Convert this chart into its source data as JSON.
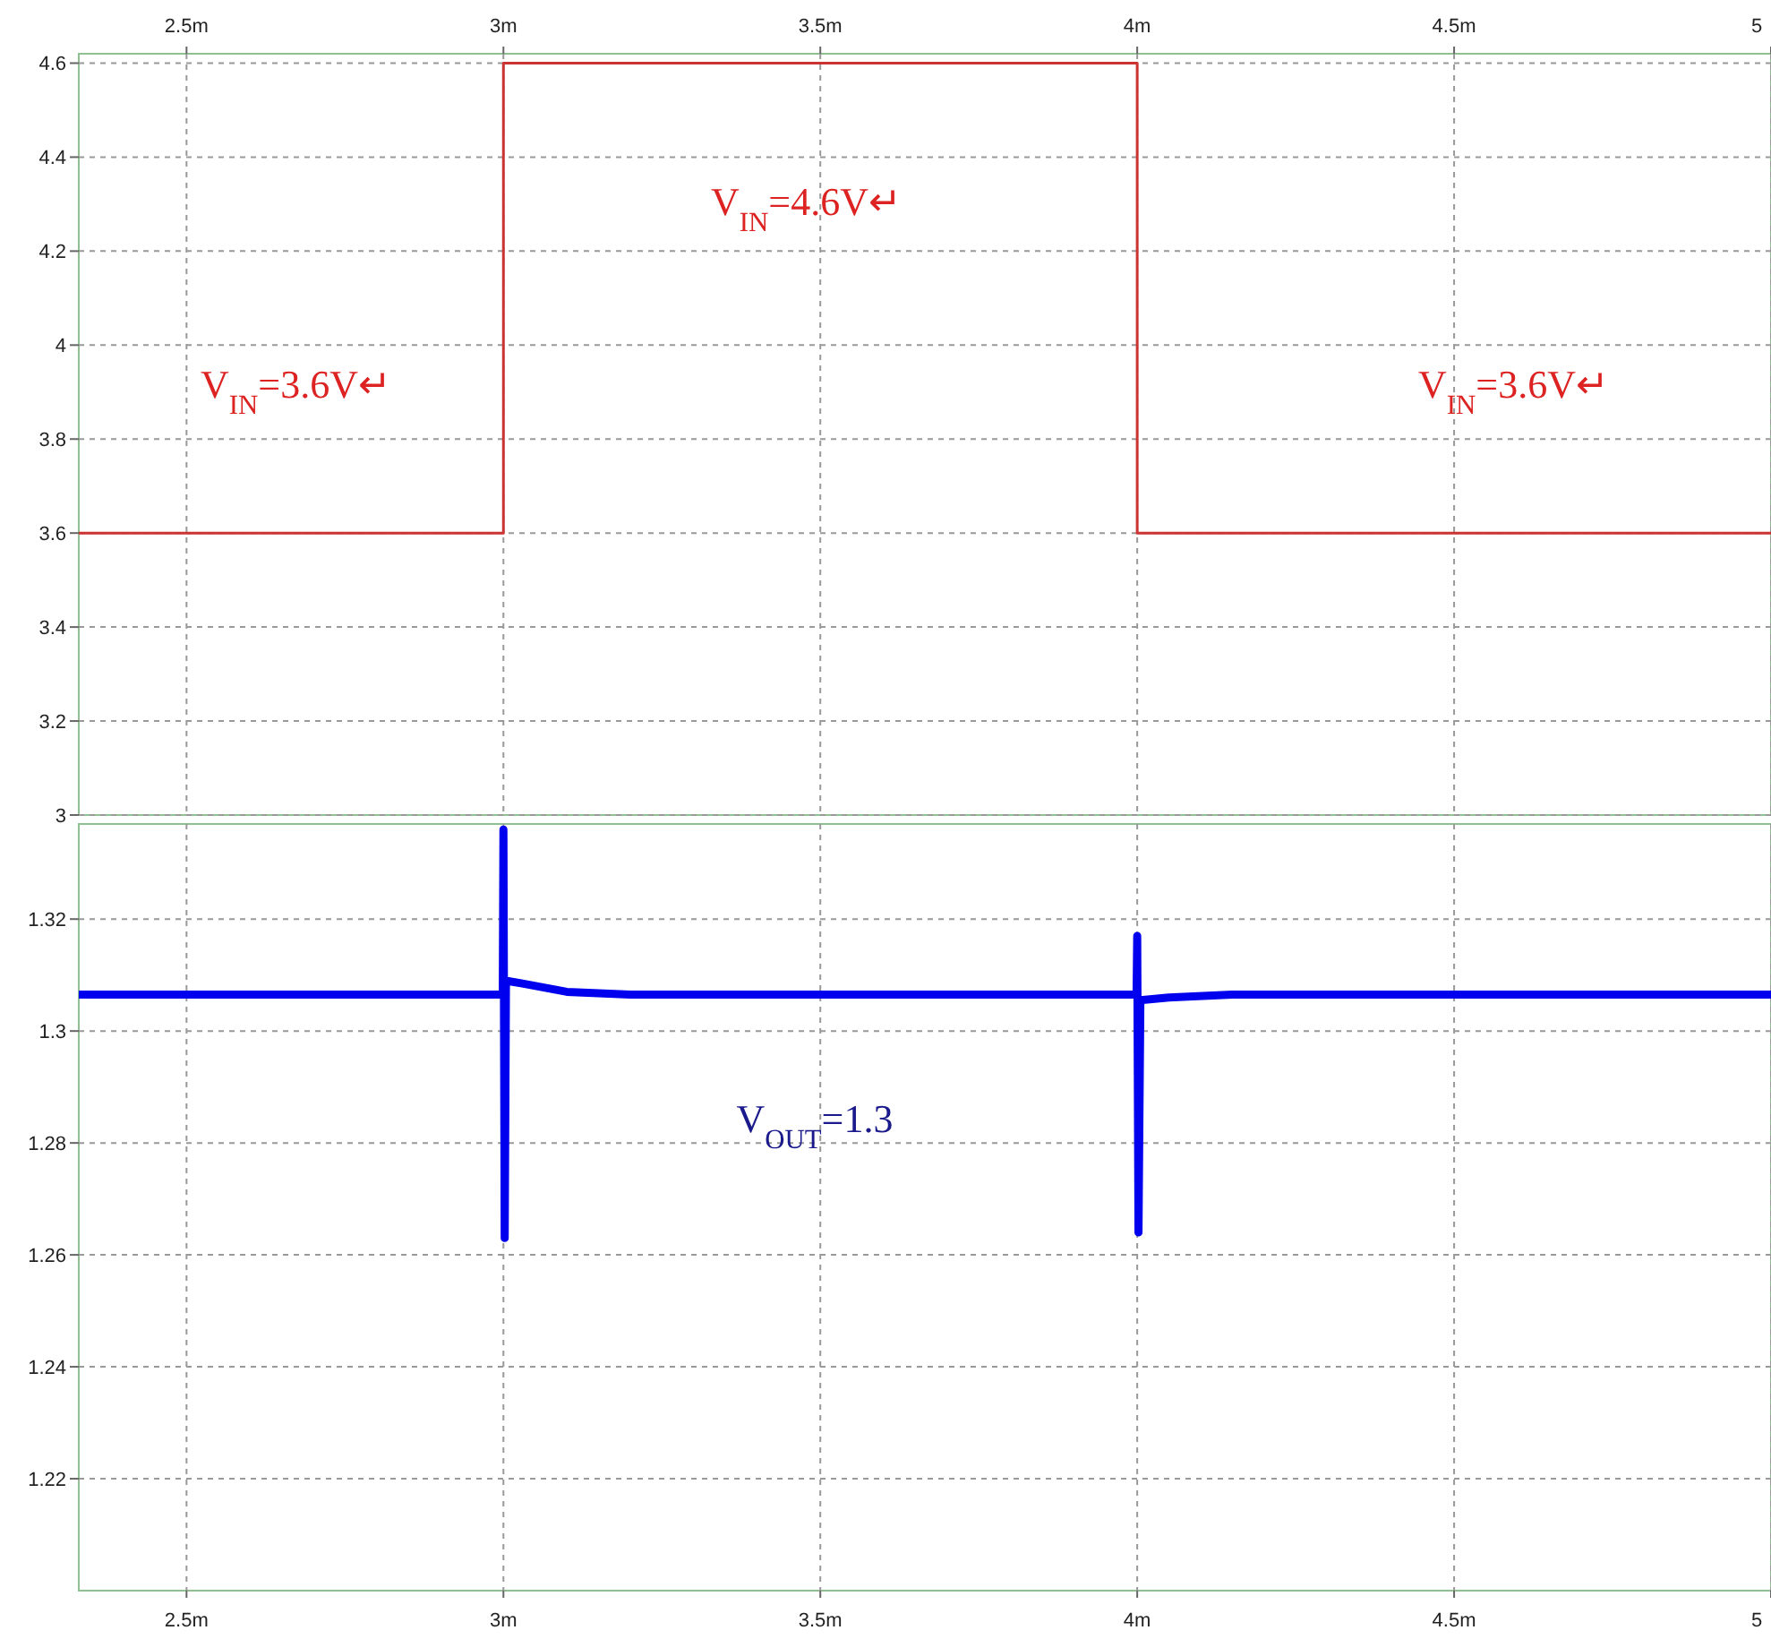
{
  "chart_data": [
    {
      "type": "line",
      "xlim": [
        2.33,
        5
      ],
      "xticks": [
        {
          "value": 2.5,
          "label": "2.5m"
        },
        {
          "value": 3,
          "label": "3m"
        },
        {
          "value": 3.5,
          "label": "3.5m"
        },
        {
          "value": 4,
          "label": "4m"
        },
        {
          "value": 4.5,
          "label": "4.5m"
        },
        {
          "value": 5,
          "label": "5"
        }
      ],
      "ylim": [
        3,
        4.62
      ],
      "yticks": [
        3,
        3.2,
        3.4,
        3.6,
        3.8,
        4,
        4.2,
        4.4,
        4.6
      ],
      "grid": true,
      "series": [
        {
          "color": "#cc3333",
          "x": [
            2.33,
            3,
            3,
            4,
            4,
            5
          ],
          "values": [
            3.6,
            3.6,
            4.6,
            4.6,
            3.6,
            3.6
          ]
        }
      ],
      "annotations": [
        "V$_{IN}$=3.6V↵",
        "V$_{IN}$=4.6V↵",
        "V$_{IN}$=3.6V↵"
      ]
    },
    {
      "type": "line",
      "xlim": [
        2.33,
        5
      ],
      "xticks": [
        {
          "value": 2.5,
          "label": "2.5m"
        },
        {
          "value": 3,
          "label": "3m"
        },
        {
          "value": 3.5,
          "label": "3.5m"
        },
        {
          "value": 4,
          "label": "4m"
        },
        {
          "value": 4.5,
          "label": "4.5m"
        },
        {
          "value": 5,
          "label": "5"
        }
      ],
      "ylim": [
        1.2,
        1.337
      ],
      "yticks": [
        1.22,
        1.24,
        1.26,
        1.28,
        1.3,
        1.32
      ],
      "grid": true,
      "series": [
        {
          "color": "#0000ee",
          "x": [
            2.33,
            2.999,
            3,
            3.002,
            3.004,
            3.03,
            3.1,
            3.2,
            3.999,
            4,
            4.002,
            4.005,
            4.05,
            4.15,
            5
          ],
          "values": [
            1.3065,
            1.3065,
            1.336,
            1.263,
            1.309,
            1.3085,
            1.307,
            1.3065,
            1.3065,
            1.317,
            1.264,
            1.3055,
            1.306,
            1.3065,
            1.3065
          ]
        }
      ],
      "annotations": [
        "V$_{OUT}$=1.3"
      ]
    }
  ]
}
